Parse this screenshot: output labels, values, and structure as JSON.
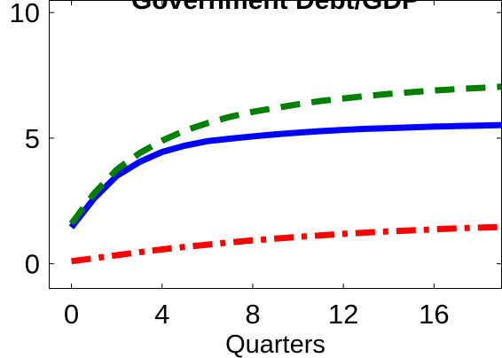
{
  "chart_data": {
    "type": "line",
    "title": "Government Debt/GDP",
    "xlabel": "Quarters",
    "ylabel": "",
    "xlim": [
      -1,
      19
    ],
    "ylim": [
      -1,
      10.5
    ],
    "x_ticks": [
      0,
      4,
      8,
      12,
      16
    ],
    "y_ticks": [
      0,
      5,
      10
    ],
    "grid": false,
    "legend": "none",
    "series": [
      {
        "color": "#0000ff",
        "line_style": "solid",
        "x": [
          0,
          1,
          2,
          3,
          4,
          5,
          6,
          7,
          8,
          9,
          10,
          11,
          12,
          13,
          14,
          15,
          16,
          17,
          18,
          19
        ],
        "values": [
          1.45,
          2.6,
          3.5,
          4.05,
          4.45,
          4.7,
          4.88,
          4.98,
          5.07,
          5.15,
          5.22,
          5.28,
          5.33,
          5.37,
          5.4,
          5.43,
          5.46,
          5.48,
          5.5,
          5.52
        ]
      },
      {
        "color": "#008000",
        "line_style": "dashed",
        "x": [
          0,
          1,
          2,
          3,
          4,
          5,
          6,
          7,
          8,
          9,
          10,
          11,
          12,
          13,
          14,
          15,
          16,
          17,
          18,
          19
        ],
        "values": [
          1.6,
          2.8,
          3.75,
          4.4,
          4.9,
          5.3,
          5.6,
          5.85,
          6.05,
          6.2,
          6.35,
          6.48,
          6.58,
          6.68,
          6.76,
          6.83,
          6.9,
          6.95,
          7.0,
          7.05
        ]
      },
      {
        "color": "#ff0000",
        "line_style": "dashdot",
        "x": [
          0,
          1,
          2,
          3,
          4,
          5,
          6,
          7,
          8,
          9,
          10,
          11,
          12,
          13,
          14,
          15,
          16,
          17,
          18,
          19
        ],
        "values": [
          0.1,
          0.22,
          0.34,
          0.46,
          0.57,
          0.67,
          0.76,
          0.85,
          0.93,
          1.0,
          1.07,
          1.13,
          1.19,
          1.24,
          1.29,
          1.33,
          1.37,
          1.41,
          1.44,
          1.46
        ]
      }
    ]
  }
}
